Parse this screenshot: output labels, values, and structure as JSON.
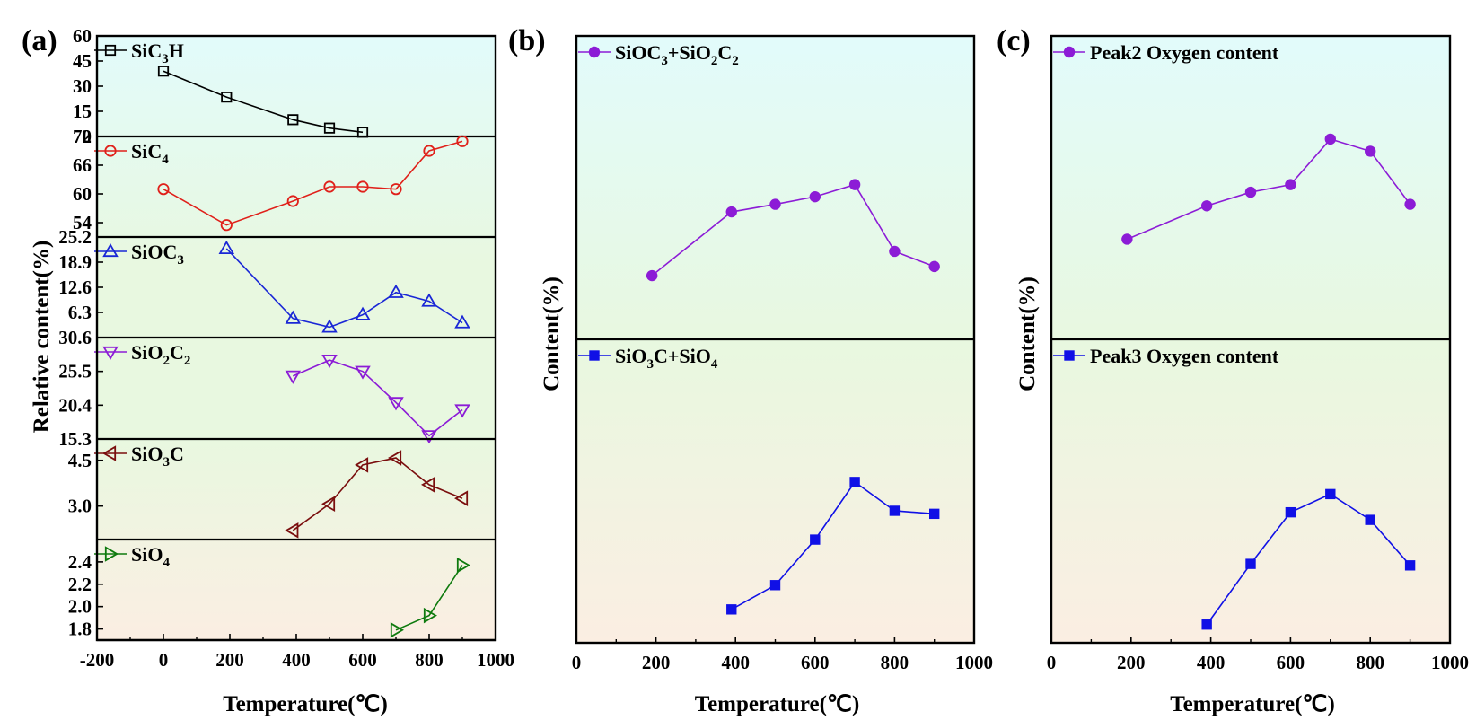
{
  "colors": {
    "cyan": "#e2fbfb",
    "green": "#e8f8e0",
    "peach": "#fbeee2",
    "black": "#000000",
    "red": "#e0201a",
    "blue": "#1a27d6",
    "purple": "#8c1cd6",
    "darkred": "#7a0e0e",
    "darkgreen": "#0e7a0e",
    "solid_blue": "#1010e6"
  },
  "chart_data": [
    {
      "type": "line",
      "panel_label": "(a)",
      "xlabel": "Temperature(℃)",
      "ylabel": "Relative content(%)",
      "xlim": [
        -200,
        1000
      ],
      "xticks": [
        "-200",
        "0",
        "200",
        "400",
        "600",
        "800",
        "1000"
      ],
      "stacked_panels": [
        {
          "name_parts": [
            [
              "SiC",
              "n"
            ],
            [
              "3",
              "s"
            ],
            [
              "H",
              "n"
            ]
          ],
          "ylim": [
            0,
            60
          ],
          "yticks": [
            "0",
            "15",
            "30",
            "45",
            "60"
          ],
          "marker": "square-open",
          "color_key": "black",
          "x": [
            0,
            190,
            390,
            500,
            600
          ],
          "y": [
            39,
            23.5,
            10,
            5,
            2.5
          ]
        },
        {
          "name_parts": [
            [
              "SiC",
              "n"
            ],
            [
              "4",
              "s"
            ]
          ],
          "ylim": [
            51,
            72
          ],
          "yticks": [
            "54",
            "60",
            "66",
            "72"
          ],
          "marker": "circle-open",
          "color_key": "red",
          "x": [
            0,
            190,
            390,
            500,
            600,
            700,
            800,
            900
          ],
          "y": [
            61,
            53.5,
            58.5,
            61.5,
            61.5,
            61,
            69,
            71
          ]
        },
        {
          "name_parts": [
            [
              "SiOC",
              "n"
            ],
            [
              "3",
              "s"
            ]
          ],
          "ylim": [
            0,
            25.2
          ],
          "yticks": [
            "6.3",
            "12.6",
            "18.9",
            "25.2"
          ],
          "marker": "triangle-up-open",
          "color_key": "blue",
          "x": [
            190,
            390,
            500,
            600,
            700,
            800,
            900
          ],
          "y": [
            22.3,
            4.8,
            2.6,
            5.7,
            11.3,
            9.1,
            3.7
          ]
        },
        {
          "name_parts": [
            [
              "SiO",
              "n"
            ],
            [
              "2",
              "s"
            ],
            [
              "C",
              "n"
            ],
            [
              "2",
              "s"
            ]
          ],
          "ylim": [
            15.3,
            30.6
          ],
          "yticks": [
            "15.3",
            "20.4",
            "25.5",
            "30.6"
          ],
          "marker": "triangle-down-open",
          "color_key": "purple",
          "x": [
            390,
            500,
            600,
            700,
            800,
            900
          ],
          "y": [
            24.8,
            27.2,
            25.5,
            20.8,
            15.8,
            19.7
          ]
        },
        {
          "name_parts": [
            [
              "SiO",
              "n"
            ],
            [
              "3",
              "s"
            ],
            [
              "C",
              "n"
            ]
          ],
          "ylim": [
            1.9,
            5.2
          ],
          "yticks": [
            "3.0",
            "4.5"
          ],
          "marker": "triangle-left-open",
          "color_key": "darkred",
          "x": [
            390,
            500,
            600,
            700,
            800,
            900
          ],
          "y": [
            2.2,
            3.07,
            4.35,
            4.58,
            3.7,
            3.25
          ]
        },
        {
          "name_parts": [
            [
              "SiO",
              "n"
            ],
            [
              "4",
              "s"
            ]
          ],
          "ylim": [
            1.7,
            2.6
          ],
          "yticks": [
            "1.8",
            "2.0",
            "2.2",
            "2.4"
          ],
          "marker": "triangle-right-open",
          "color_key": "darkgreen",
          "x": [
            700,
            800,
            900
          ],
          "y": [
            1.79,
            1.92,
            2.37
          ]
        }
      ]
    },
    {
      "type": "line",
      "panel_label": "(b)",
      "xlabel": "Temperature(℃)",
      "ylabel": "Content(%)",
      "xlim": [
        0,
        1000
      ],
      "xticks": [
        "0",
        "200",
        "400",
        "600",
        "800",
        "1000"
      ],
      "stacked_panels": [
        {
          "name_parts": [
            [
              "SiOC",
              "n"
            ],
            [
              "3",
              "s"
            ],
            [
              "+SiO",
              "n"
            ],
            [
              "2",
              "s"
            ],
            [
              "C",
              "n"
            ],
            [
              "2",
              "s"
            ]
          ],
          "ylim": [
            0,
            100
          ],
          "marker": "circle-filled",
          "color_key": "purple",
          "x": [
            190,
            390,
            500,
            600,
            700,
            800,
            900
          ],
          "y": [
            21,
            42,
            44.5,
            47,
            51,
            29,
            24
          ]
        },
        {
          "name_parts": [
            [
              "SiO",
              "n"
            ],
            [
              "3",
              "s"
            ],
            [
              "C+SiO",
              "n"
            ],
            [
              "4",
              "s"
            ]
          ],
          "ylim": [
            0,
            100
          ],
          "marker": "square-filled",
          "color_key": "solid_blue",
          "x": [
            390,
            500,
            600,
            700,
            800,
            900
          ],
          "y": [
            11,
            19,
            34,
            53,
            43.5,
            42.5
          ]
        }
      ]
    },
    {
      "type": "line",
      "panel_label": "(c)",
      "xlabel": "Temperature(℃)",
      "ylabel": "Content(%)",
      "xlim": [
        0,
        1000
      ],
      "xticks": [
        "0",
        "200",
        "400",
        "600",
        "800",
        "1000"
      ],
      "stacked_panels": [
        {
          "name_parts": [
            [
              "Peak2 Oxygen content",
              "n"
            ]
          ],
          "ylim": [
            0,
            100
          ],
          "marker": "circle-filled",
          "color_key": "purple",
          "x": [
            190,
            390,
            500,
            600,
            700,
            800,
            900
          ],
          "y": [
            33,
            44,
            48.5,
            51,
            66,
            62,
            44.5
          ]
        },
        {
          "name_parts": [
            [
              "Peak3 Oxygen content",
              "n"
            ]
          ],
          "ylim": [
            0,
            100
          ],
          "marker": "square-filled",
          "color_key": "solid_blue",
          "x": [
            390,
            500,
            600,
            700,
            800,
            900
          ],
          "y": [
            6,
            26,
            43,
            49,
            40.5,
            25.5
          ]
        }
      ]
    }
  ]
}
